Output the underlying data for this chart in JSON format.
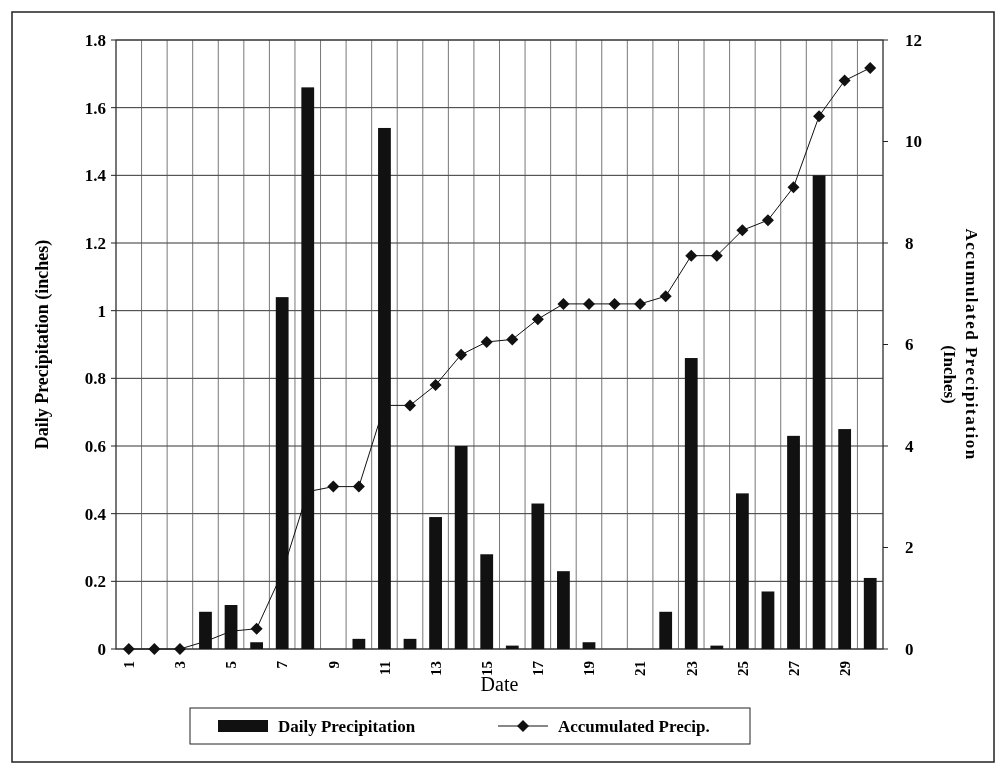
{
  "chart_data": {
    "type": "bar",
    "xlabel": "Date",
    "ylabel": "Daily Precipitation (inches)",
    "y2label": "Accumulated Precipitation (Inches)",
    "categories": [
      "1",
      null,
      "3",
      null,
      "5",
      null,
      "7",
      null,
      "9",
      null,
      "11",
      null,
      "13",
      null,
      "15",
      null,
      "17",
      null,
      "19",
      null,
      "21",
      null,
      "23",
      null,
      "25",
      null,
      "27",
      null,
      "29",
      null
    ],
    "series": [
      {
        "name": "Daily Precipitation",
        "color": "#111111",
        "values": [
          0,
          0,
          0,
          0.11,
          0.13,
          0.02,
          1.04,
          1.66,
          0,
          0.03,
          1.54,
          0.03,
          0.39,
          0.6,
          0.28,
          0.01,
          0.43,
          0.23,
          0.02,
          0,
          0,
          0.11,
          0.86,
          0.01,
          0.46,
          0.17,
          0.63,
          1.4,
          0.65,
          0.21
        ]
      },
      {
        "name": "Accumulated Precip.",
        "type": "line",
        "axis": "y2",
        "color": "#111111",
        "marker": "diamond",
        "values": [
          0,
          0,
          0,
          0.15,
          0.35,
          0.4,
          1.5,
          3.1,
          3.2,
          3.2,
          4.8,
          4.8,
          5.2,
          5.8,
          6.05,
          6.1,
          6.5,
          6.8,
          6.8,
          6.8,
          6.8,
          6.95,
          7.75,
          7.75,
          8.25,
          8.45,
          9.1,
          10.5,
          11.2,
          11.45
        ]
      }
    ],
    "ylim": [
      0,
      1.8
    ],
    "yticks": [
      0,
      0.2,
      0.4,
      0.6,
      0.8,
      1,
      1.2,
      1.4,
      1.6,
      1.8
    ],
    "y2lim": [
      0,
      12
    ],
    "y2ticks": [
      0,
      2,
      4,
      6,
      8,
      10,
      12
    ],
    "grid": true,
    "legend": "bottom"
  }
}
